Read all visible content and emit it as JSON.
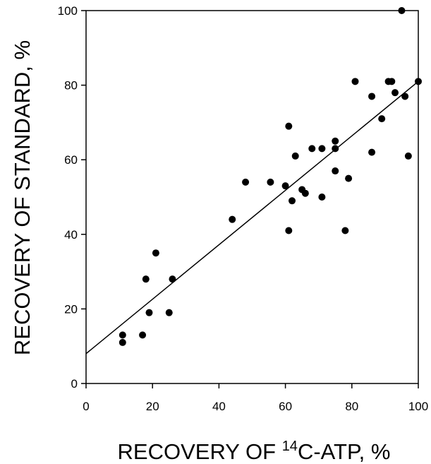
{
  "chart_data": {
    "type": "scatter",
    "title": "",
    "xlabel_prefix": "RECOVERY OF ",
    "xlabel_superscript": "14",
    "xlabel_suffix": "C-ATP, %",
    "ylabel": "RECOVERY OF STANDARD, %",
    "xlim": [
      0,
      100
    ],
    "ylim": [
      0,
      100
    ],
    "xticks": [
      0,
      20,
      40,
      60,
      80,
      100
    ],
    "yticks": [
      0,
      20,
      40,
      60,
      80,
      100
    ],
    "grid": false,
    "legend": "none",
    "marker_color": "#000000",
    "points": [
      [
        11,
        13
      ],
      [
        11,
        11
      ],
      [
        17,
        13
      ],
      [
        18,
        28
      ],
      [
        19,
        19
      ],
      [
        21,
        35
      ],
      [
        25,
        19
      ],
      [
        26,
        28
      ],
      [
        44,
        44
      ],
      [
        48,
        54
      ],
      [
        55.5,
        54
      ],
      [
        60,
        53
      ],
      [
        61,
        41
      ],
      [
        61,
        69
      ],
      [
        62,
        49
      ],
      [
        63,
        61
      ],
      [
        65,
        52
      ],
      [
        66,
        51
      ],
      [
        68,
        63
      ],
      [
        71,
        63
      ],
      [
        71,
        50
      ],
      [
        75,
        65
      ],
      [
        75,
        63
      ],
      [
        75,
        57
      ],
      [
        78,
        41
      ],
      [
        79,
        55
      ],
      [
        81,
        81
      ],
      [
        86,
        77
      ],
      [
        86,
        62
      ],
      [
        89,
        71
      ],
      [
        91,
        81
      ],
      [
        92,
        81
      ],
      [
        93,
        78
      ],
      [
        95,
        100
      ],
      [
        96,
        77
      ],
      [
        97,
        61
      ],
      [
        100,
        81
      ]
    ],
    "fit_line": {
      "x": [
        0,
        100
      ],
      "y": [
        8,
        81
      ]
    }
  }
}
